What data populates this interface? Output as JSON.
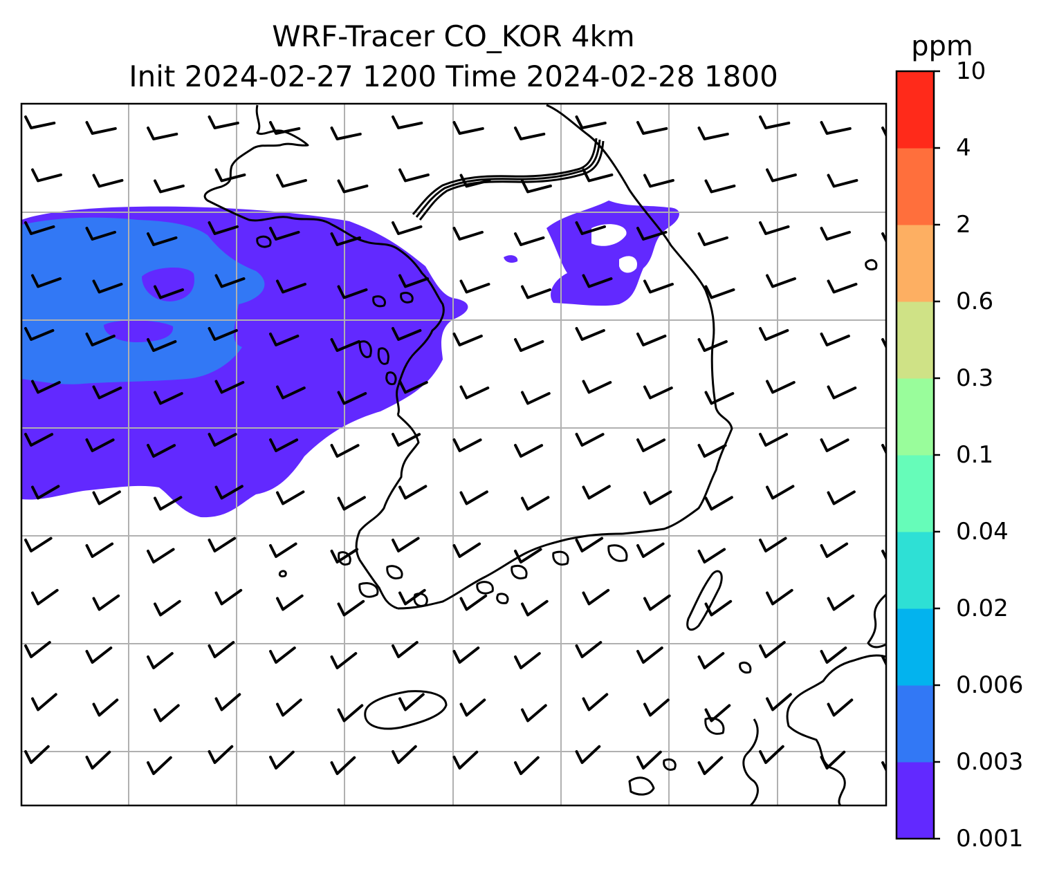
{
  "title": {
    "line1": "WRF-Tracer CO_KOR 4km",
    "line2": "Init 2024-02-27 1200 Time 2024-02-28 1800"
  },
  "colorbar": {
    "unit": "ppm",
    "levels": [
      "0.001",
      "0.003",
      "0.006",
      "0.02",
      "0.04",
      "0.1",
      "0.3",
      "0.6",
      "2",
      "4",
      "10"
    ],
    "colors": [
      "#6229ff",
      "#3278f5",
      "#03b3ee",
      "#2ee0d5",
      "#66fcb9",
      "#99fd9b",
      "#cfe286",
      "#fdaf62",
      "#ff6f3c",
      "#ff2a1a"
    ]
  },
  "map": {
    "ocean_color": "#ffffff",
    "coastline_color": "#000000",
    "gridline_color": "#b0b0b0",
    "wind_barb_color": "#000000",
    "tracer_field": [
      {
        "level": "0.001",
        "color": "#6229ff",
        "region": "Yellow Sea plume west of Korean peninsula"
      },
      {
        "level": "0.003",
        "color": "#3278f5",
        "region": "western core of plume"
      },
      {
        "level": "0.001",
        "color": "#6229ff",
        "region": "central Korea inland patch"
      }
    ]
  }
}
